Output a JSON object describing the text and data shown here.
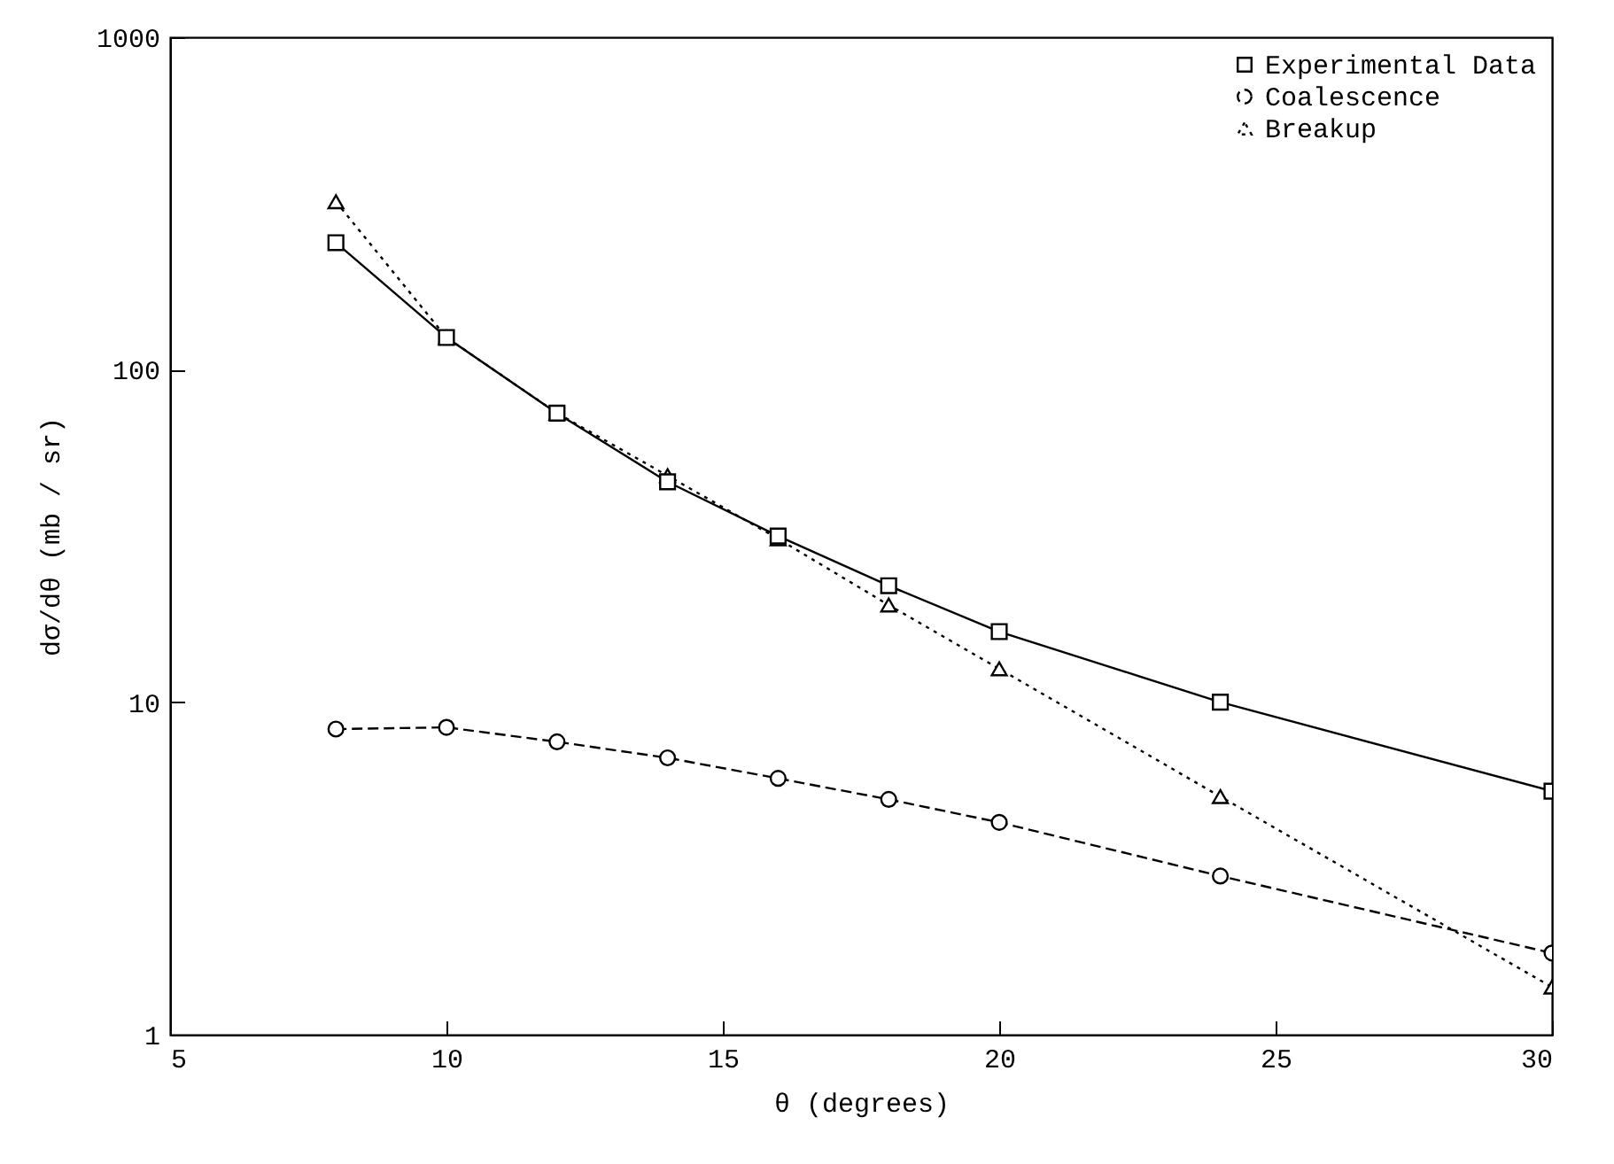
{
  "chart_data": {
    "type": "line",
    "xlabel": "θ (degrees)",
    "ylabel": "dσ/dθ (mb / sr)",
    "log": "y",
    "xlim": [
      5,
      30
    ],
    "xticks": [
      5,
      10,
      15,
      20,
      25,
      30
    ],
    "ylim": [
      1,
      1000
    ],
    "yticks": [
      1,
      10,
      100,
      1000
    ],
    "grid": false,
    "legend": "top right",
    "x": [
      8,
      10,
      12,
      14,
      16,
      18,
      20,
      24,
      30
    ],
    "series": [
      {
        "name": "Experimental Data",
        "color": "#000000",
        "line_style": "solid",
        "marker": "square",
        "values": [
          241,
          125,
          74,
          46,
          31.6,
          22.4,
          16.3,
          10.0,
          5.4
        ]
      },
      {
        "name": "Coalescence",
        "color": "#000000",
        "line_style": "dashed",
        "marker": "circle",
        "values": [
          8.3,
          8.4,
          7.6,
          6.8,
          5.9,
          5.1,
          4.35,
          3.0,
          1.76
        ]
      },
      {
        "name": "Breakup",
        "color": "#000000",
        "line_style": "dotted",
        "marker": "triangle",
        "values": [
          320,
          125,
          74,
          48,
          31,
          19.6,
          12.6,
          5.2,
          1.39
        ]
      }
    ]
  }
}
